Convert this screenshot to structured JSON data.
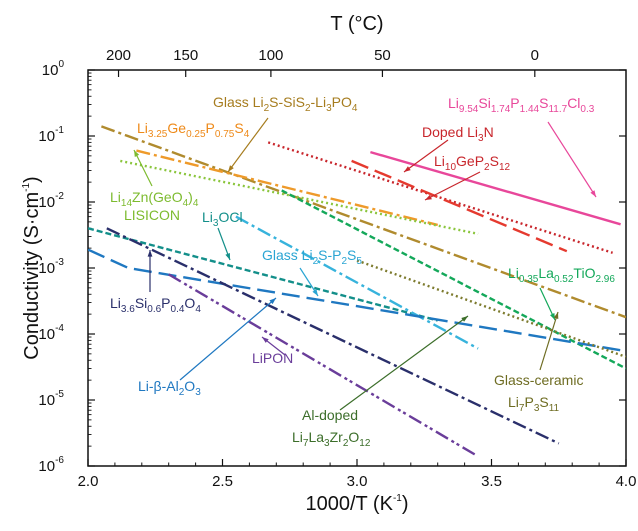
{
  "chart_data": {
    "type": "line",
    "xlabel": "1000/T (K",
    "xlabel_sup": "-1",
    "xlabel_close": ")",
    "ylabel": "Conductivity   (S·cm",
    "ylabel_sup": "-1",
    "ylabel_close": ")",
    "top_label": "T (°C)",
    "xlim": [
      2.0,
      4.0
    ],
    "ylim_log10": [
      -6,
      0
    ],
    "yscale": "log",
    "x_ticks": [
      {
        "v": 2.0,
        "label": "2.0"
      },
      {
        "v": 2.5,
        "label": "2.5"
      },
      {
        "v": 3.0,
        "label": "3.0"
      },
      {
        "v": 3.5,
        "label": "3.5"
      },
      {
        "v": 4.0,
        "label": "4.0"
      }
    ],
    "y_ticks": [
      {
        "e": 0,
        "base": "10",
        "exp": "0"
      },
      {
        "e": -1,
        "base": "10",
        "exp": "-1"
      },
      {
        "e": -2,
        "base": "10",
        "exp": "-2"
      },
      {
        "e": -3,
        "base": "10",
        "exp": "-3"
      },
      {
        "e": -4,
        "base": "10",
        "exp": "-4"
      },
      {
        "e": -5,
        "base": "10",
        "exp": "-5"
      },
      {
        "e": -6,
        "base": "10",
        "exp": "-6"
      }
    ],
    "top_ticks": [
      {
        "label": "200",
        "celsius": 200
      },
      {
        "label": "150",
        "celsius": 150
      },
      {
        "label": "100",
        "celsius": 100
      },
      {
        "label": "50",
        "celsius": 50
      },
      {
        "label": "0",
        "celsius": 0
      }
    ],
    "series": [
      {
        "name": "Li9.54Si1.74P1.44S11.7Cl0.3",
        "color": "#e8479a",
        "dash": "",
        "x": [
          3.05,
          3.98
        ],
        "y": [
          0.057,
          0.0046
        ]
      },
      {
        "name": "Doped Li3N",
        "color": "#c8262c",
        "dash": "2,3",
        "x": [
          2.67,
          3.95
        ],
        "y": [
          0.08,
          0.0017
        ]
      },
      {
        "name": "Li10GeP2S12",
        "color": "#e53a2f",
        "dash": "18,7",
        "x": [
          2.98,
          3.78
        ],
        "y": [
          0.042,
          0.0018
        ]
      },
      {
        "name": "Glass Li2S-SiS2-Li3PO4",
        "color": "#b08b2e",
        "dash": "14,4,3,4",
        "x": [
          2.05,
          4.0
        ],
        "y": [
          0.14,
          0.00018
        ]
      },
      {
        "name": "Li3.25Ge0.25P0.75S4",
        "color": "#ee9a2a",
        "dash": "14,4,3,4",
        "x": [
          2.18,
          3.3
        ],
        "y": [
          0.06,
          0.0045
        ]
      },
      {
        "name": "Li14Zn(GeO4)4 LISICON",
        "color": "#8cc63f",
        "dash": "2,3",
        "x": [
          2.12,
          3.45
        ],
        "y": [
          0.042,
          0.0033
        ]
      },
      {
        "name": "Li0.35La0.52TiO2.96",
        "color": "#14a85a",
        "dash": "6,3",
        "x": [
          2.72,
          4.0
        ],
        "y": [
          0.015,
          3e-05
        ]
      },
      {
        "name": "Li3OCl",
        "color": "#138f8a",
        "dash": "6,3",
        "x": [
          2.0,
          3.3
        ],
        "y": [
          0.004,
          0.00016
        ]
      },
      {
        "name": "Glass Li2S-P2S5",
        "color": "#37b3dc",
        "dash": "14,4,3,4",
        "x": [
          2.55,
          3.45
        ],
        "y": [
          0.006,
          6e-05
        ]
      },
      {
        "name": "Li-β-Al2O3",
        "color": "#1f78c1",
        "dash": "18,7",
        "x": [
          2.0,
          2.15,
          4.0
        ],
        "y": [
          0.0019,
          0.001,
          5.5e-05
        ]
      },
      {
        "name": "Li3.6Si0.6P0.4O4",
        "color": "#2a2f6b",
        "dash": "14,4,3,4",
        "x": [
          2.07,
          3.75
        ],
        "y": [
          0.004,
          2.2e-06
        ]
      },
      {
        "name": "LiPON",
        "color": "#6a3d9a",
        "dash": "14,4,3,3,3,4",
        "x": [
          2.3,
          3.45
        ],
        "y": [
          0.0008,
          1.4e-06
        ]
      },
      {
        "name": "Glass-ceramic Li7P3S11",
        "color": "#7d7b2e",
        "dash": "2,3",
        "x": [
          3.0,
          4.0
        ],
        "y": [
          0.0013,
          4.5e-05
        ]
      }
    ],
    "labels": [
      {
        "id": "lgps_cl",
        "segs": [
          [
            "Li",
            ""
          ],
          [
            "9.54",
            "sub"
          ],
          [
            "Si",
            ""
          ],
          [
            "1.74",
            "sub"
          ],
          [
            "P",
            ""
          ],
          [
            "1.44",
            "sub"
          ],
          [
            "S",
            ""
          ],
          [
            "11.7",
            "sub"
          ],
          [
            "Cl",
            ""
          ],
          [
            "0.3",
            "sub"
          ]
        ],
        "color": "#e8479a"
      },
      {
        "id": "doped_li3n",
        "segs": [
          [
            "Doped Li",
            ""
          ],
          [
            "3",
            "sub"
          ],
          [
            "N",
            ""
          ]
        ],
        "color": "#c8262c"
      },
      {
        "id": "lgps",
        "segs": [
          [
            "Li",
            ""
          ],
          [
            "10",
            "sub"
          ],
          [
            "GeP",
            ""
          ],
          [
            "2",
            "sub"
          ],
          [
            "S",
            ""
          ],
          [
            "12",
            "sub"
          ]
        ],
        "color": "#c8262c"
      },
      {
        "id": "glass_sis2",
        "segs": [
          [
            "Glass Li",
            ""
          ],
          [
            "2",
            "sub"
          ],
          [
            "S-SiS",
            ""
          ],
          [
            "2",
            "sub"
          ],
          [
            "-Li",
            ""
          ],
          [
            "3",
            "sub"
          ],
          [
            "PO",
            ""
          ],
          [
            "4",
            "sub"
          ]
        ],
        "color": "#a67c1e"
      },
      {
        "id": "thio",
        "segs": [
          [
            "Li",
            ""
          ],
          [
            "3.25",
            "sub"
          ],
          [
            "Ge",
            ""
          ],
          [
            "0.25",
            "sub"
          ],
          [
            "P",
            ""
          ],
          [
            "0.75",
            "sub"
          ],
          [
            "S",
            ""
          ],
          [
            "4",
            "sub"
          ]
        ],
        "color": "#ee8a1a"
      },
      {
        "id": "lisicon1",
        "segs": [
          [
            "Li",
            ""
          ],
          [
            "14",
            "sub"
          ],
          [
            "Zn(GeO",
            ""
          ],
          [
            "4",
            "sub"
          ],
          [
            ")",
            ""
          ],
          [
            "4",
            "sub"
          ]
        ],
        "color": "#7dbb2f"
      },
      {
        "id": "lisicon2",
        "segs": [
          [
            "LISICON",
            ""
          ]
        ],
        "color": "#7dbb2f"
      },
      {
        "id": "li3ocl",
        "segs": [
          [
            "Li",
            ""
          ],
          [
            "3",
            "sub"
          ],
          [
            "OCl",
            ""
          ]
        ],
        "color": "#138f8a"
      },
      {
        "id": "glass_p2s5",
        "segs": [
          [
            "Glass Li",
            ""
          ],
          [
            "2",
            "sub"
          ],
          [
            "S-P",
            ""
          ],
          [
            "2",
            "sub"
          ],
          [
            "S",
            ""
          ],
          [
            "5",
            "sub"
          ]
        ],
        "color": "#2aa5d3"
      },
      {
        "id": "llto",
        "segs": [
          [
            "Li",
            ""
          ],
          [
            "0.35",
            "sub"
          ],
          [
            "La",
            ""
          ],
          [
            "0.52",
            "sub"
          ],
          [
            "TiO",
            ""
          ],
          [
            "2.96",
            "sub"
          ]
        ],
        "color": "#14a85a"
      },
      {
        "id": "lisipo",
        "segs": [
          [
            "Li",
            ""
          ],
          [
            "3.6",
            "sub"
          ],
          [
            "Si",
            ""
          ],
          [
            "0.6",
            "sub"
          ],
          [
            "P",
            ""
          ],
          [
            "0.4",
            "sub"
          ],
          [
            "O",
            ""
          ],
          [
            "4",
            "sub"
          ]
        ],
        "color": "#2a2f6b"
      },
      {
        "id": "alumina",
        "segs": [
          [
            "Li-β-Al",
            ""
          ],
          [
            "2",
            "sub"
          ],
          [
            "O",
            ""
          ],
          [
            "3",
            "sub"
          ]
        ],
        "color": "#1f78c1"
      },
      {
        "id": "lipon",
        "segs": [
          [
            "LiPON",
            ""
          ]
        ],
        "color": "#6a3d9a"
      },
      {
        "id": "llzo1",
        "segs": [
          [
            "Al-doped",
            ""
          ]
        ],
        "color": "#3c6e2a"
      },
      {
        "id": "llzo2",
        "segs": [
          [
            "Li",
            ""
          ],
          [
            "7",
            "sub"
          ],
          [
            "La",
            ""
          ],
          [
            "3",
            "sub"
          ],
          [
            "Zr",
            ""
          ],
          [
            "2",
            "sub"
          ],
          [
            "O",
            ""
          ],
          [
            "12",
            "sub"
          ]
        ],
        "color": "#3c6e2a"
      },
      {
        "id": "gc1",
        "segs": [
          [
            "Glass-ceramic",
            ""
          ]
        ],
        "color": "#6e6c22"
      },
      {
        "id": "gc2",
        "segs": [
          [
            "Li",
            ""
          ],
          [
            "7",
            "sub"
          ],
          [
            "P",
            ""
          ],
          [
            "3",
            "sub"
          ],
          [
            "S",
            ""
          ],
          [
            "11",
            "sub"
          ]
        ],
        "color": "#6e6c22"
      }
    ]
  }
}
